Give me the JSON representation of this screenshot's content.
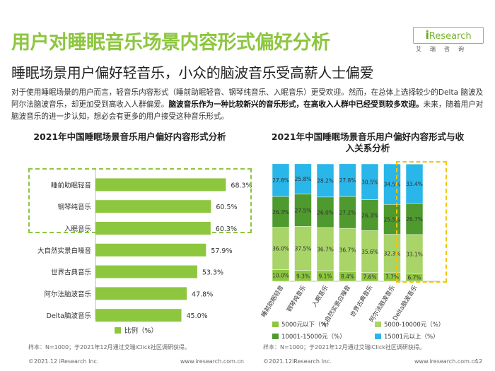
{
  "header": {
    "title": "用户对睡眠音乐场景内容形式偏好分析",
    "subtitle": "睡眠场景用户偏好轻音乐，小众的脑波音乐受高薪人士偏爱",
    "logo_text_lead": "i",
    "logo_text_rest": "Research",
    "logo_cn": "艾瑞咨询"
  },
  "paragraph": {
    "part1": "对于使用睡眠场景的用户而言，轻音乐内容形式（睡前助眠轻音、钢琴纯音乐、入眠音乐）更受欢迎。然而，在总体上选择较少的Delta 脑波及阿尔法脑波音乐，却更加受到高收入人群偏爱。",
    "part2_bold": "脑波音乐作为一种比较新兴的音乐形式，在高收入人群中已经受到较多欢迎。",
    "part3": "未来，随着用户对脑波音乐的进一步认知，想必会有更多的用户接受这种音乐形式。"
  },
  "chart_left": {
    "title": "2021年中国睡眠场景音乐用户偏好内容形式分析",
    "legend_label": "比例（%）",
    "source": "样本：N=1000；于2021年12月通过艾瑞iClick社区调研获得。"
  },
  "chart_right": {
    "title_line1": "2021年中国睡眠场景音乐用户偏好内容形式与收",
    "title_line2": "入关系分析",
    "source": "样本：N=1000；于2021年12月通过艾瑞iClick社区调研获得。",
    "legend": [
      {
        "label": "5000元以下（%）",
        "color": "#8dc63f"
      },
      {
        "label": "5000-10000元（%）",
        "color": "#a8d468"
      },
      {
        "label": "10001-15000元（%）",
        "color": "#4e9a2e"
      },
      {
        "label": "15001元以上（%）",
        "color": "#29b6e8"
      }
    ]
  },
  "footer": {
    "left1": "©2021.12 iResearch Inc.",
    "mid1": "www.iresearch.com.cn",
    "left2": "©2021.12iResearch Inc.",
    "mid2": "www.iresearch.com.cn",
    "page": "12"
  },
  "colors": {
    "green": "#8dc63f",
    "light_green": "#a8d468",
    "dark_green": "#4e9a2e",
    "blue": "#29b6e8",
    "highlight_yellow": "#f4c40f"
  },
  "chart_data": [
    {
      "type": "bar",
      "orientation": "horizontal",
      "title": "2021年中国睡眠场景音乐用户偏好内容形式分析",
      "categories": [
        "睡前助眠轻音",
        "钢琴纯音乐",
        "入眠音乐",
        "大自然实景白噪音",
        "世界古典音乐",
        "阿尔法脑波音乐",
        "Delta脑波音乐"
      ],
      "values": [
        68.3,
        60.5,
        60.3,
        57.9,
        53.3,
        47.8,
        45.0
      ],
      "value_labels": [
        "68.3%",
        "60.5%",
        "60.3%",
        "57.9%",
        "53.3%",
        "47.8%",
        "45.0%"
      ],
      "series_name": "比例（%）",
      "xlim": [
        0,
        100
      ],
      "legend_position": "bottom",
      "highlight_categories": [
        "睡前助眠轻音",
        "钢琴纯音乐",
        "入眠音乐"
      ]
    },
    {
      "type": "bar",
      "stacked": true,
      "percent": true,
      "title": "2021年中国睡眠场景音乐用户偏好内容形式与收入关系分析",
      "categories": [
        "睡前助眠轻音",
        "钢琴纯音乐",
        "入眠音乐",
        "大自然实景白噪音",
        "世界古典音乐",
        "阿尔法脑波音乐",
        "Delta脑波音乐"
      ],
      "series": [
        {
          "name": "5000元以下（%）",
          "values": [
            10.0,
            9.3,
            9.1,
            8.4,
            7.6,
            7.7,
            6.7
          ],
          "labels": [
            "10.0%",
            "9.3%",
            "9.1%",
            "8.4%",
            "7.6%",
            "7.7%",
            "6.7%"
          ]
        },
        {
          "name": "5000-10000元（%）",
          "values": [
            36.0,
            37.5,
            36.7,
            36.7,
            35.6,
            32.3,
            33.1
          ],
          "labels": [
            "36.0%",
            "37.5%",
            "36.7%",
            "36.7%",
            "35.6%",
            "32.3%",
            "33.1%"
          ]
        },
        {
          "name": "10001-15000元（%）",
          "values": [
            26.3,
            27.5,
            26.0,
            27.2,
            26.3,
            25.5,
            26.7
          ],
          "labels": [
            "26.3%",
            "27.5%",
            "26.0%",
            "27.2%",
            "26.3%",
            "25.5%",
            "26.7%"
          ]
        },
        {
          "name": "15001元以上（%）",
          "values": [
            27.8,
            25.8,
            28.2,
            27.8,
            30.5,
            34.5,
            33.4
          ],
          "labels": [
            "27.8%",
            "25.8%",
            "28.2%",
            "27.8%",
            "30.5%",
            "34.5%",
            "33.4%"
          ]
        }
      ],
      "ylim": [
        0,
        100
      ],
      "legend_position": "bottom",
      "highlight_categories": [
        "阿尔法脑波音乐",
        "Delta脑波音乐"
      ]
    }
  ]
}
